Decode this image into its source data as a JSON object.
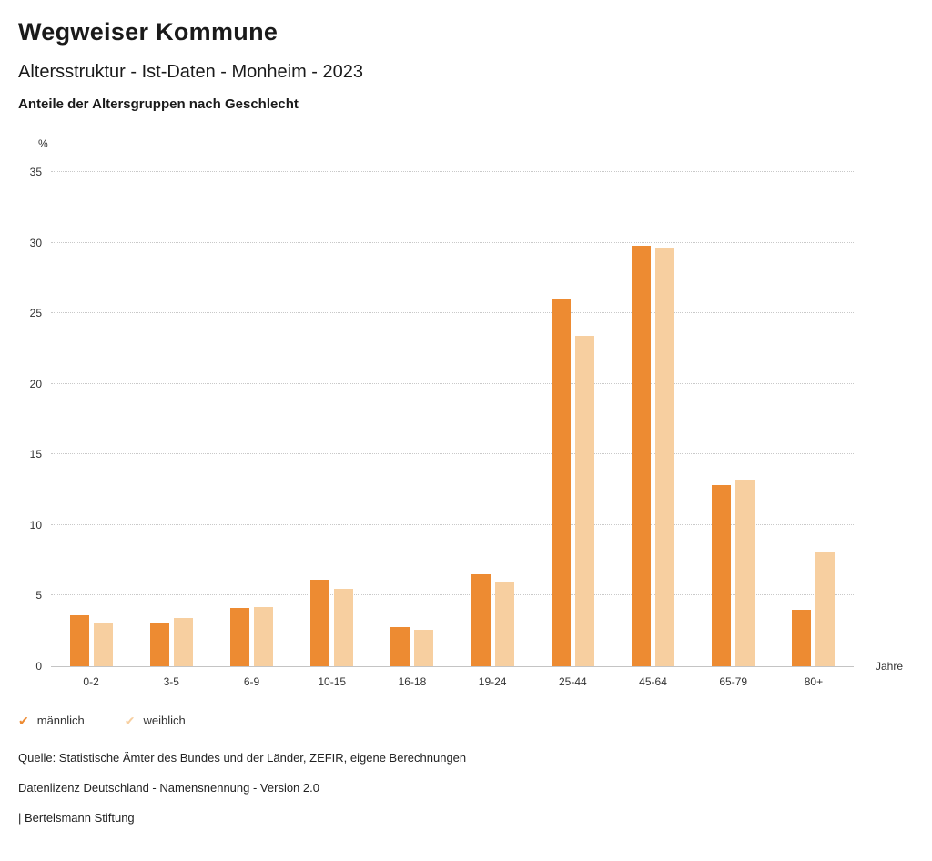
{
  "header": {
    "title": "Wegweiser Kommune",
    "subtitle": "Altersstruktur - Ist-Daten - Monheim - 2023",
    "subsubtitle": "Anteile der Altersgruppen nach Geschlecht"
  },
  "chart_data": {
    "type": "bar",
    "title": "Anteile der Altersgruppen nach Geschlecht",
    "categories": [
      "0-2",
      "3-5",
      "6-9",
      "10-15",
      "16-18",
      "19-24",
      "25-44",
      "45-64",
      "65-79",
      "80+"
    ],
    "series": [
      {
        "name": "männlich",
        "color": "#ED8B32",
        "values": [
          3.6,
          3.1,
          4.1,
          6.1,
          2.8,
          6.5,
          26.0,
          29.8,
          12.8,
          4.0
        ]
      },
      {
        "name": "weiblich",
        "color": "#F7CFA0",
        "values": [
          3.0,
          3.4,
          4.2,
          5.5,
          2.6,
          6.0,
          23.4,
          29.6,
          13.2,
          8.1
        ]
      }
    ],
    "ylabel": "%",
    "xlabel": "Jahre",
    "ylim": [
      0,
      35
    ],
    "yticks": [
      0,
      5,
      10,
      15,
      20,
      25,
      30,
      35
    ],
    "grid": "dotted-horizontal",
    "legend_position": "bottom-left"
  },
  "legend": {
    "check_glyph": "✔",
    "items": [
      {
        "label": "männlich",
        "color": "#ED8B32"
      },
      {
        "label": "weiblich",
        "color": "#F7CFA0"
      }
    ]
  },
  "footer": {
    "line1": "Quelle: Statistische Ämter des Bundes und der Länder, ZEFIR, eigene Berechnungen",
    "line2": "Datenlizenz Deutschland - Namensnennung - Version 2.0",
    "line3": "| Bertelsmann Stiftung"
  }
}
